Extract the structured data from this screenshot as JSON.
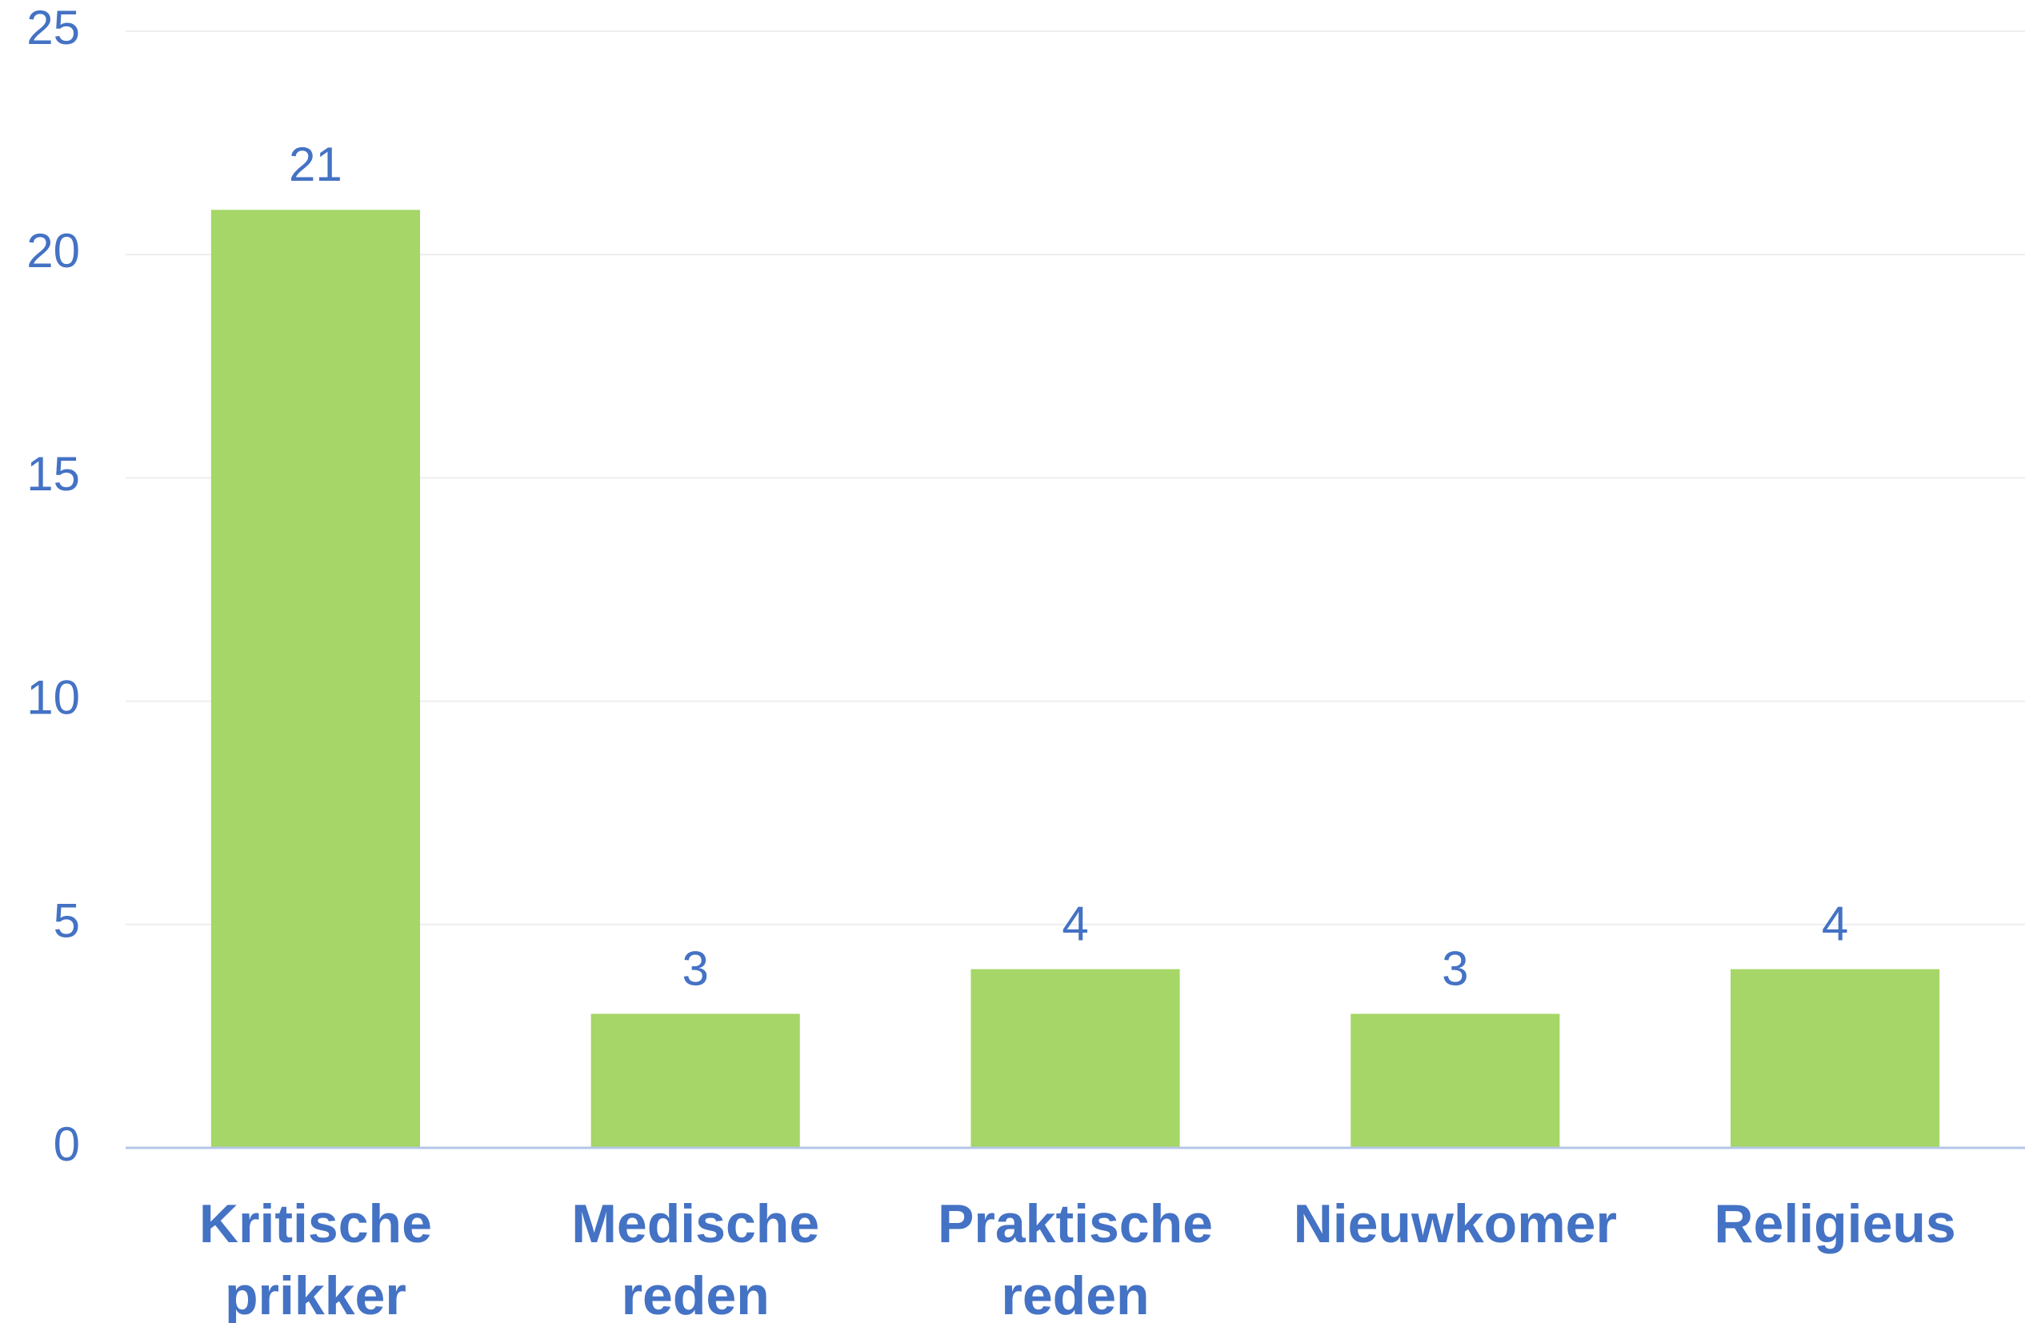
{
  "chart_data": {
    "type": "bar",
    "categories": [
      "Kritische prikker",
      "Medische reden",
      "Praktische reden",
      "Nieuwkomer",
      "Religieus"
    ],
    "values": [
      21,
      3,
      4,
      3,
      4
    ],
    "color": "#a5d667",
    "ylim": [
      0,
      25
    ],
    "yticks": [
      0,
      5,
      10,
      15,
      20,
      25
    ],
    "grid": true
  }
}
